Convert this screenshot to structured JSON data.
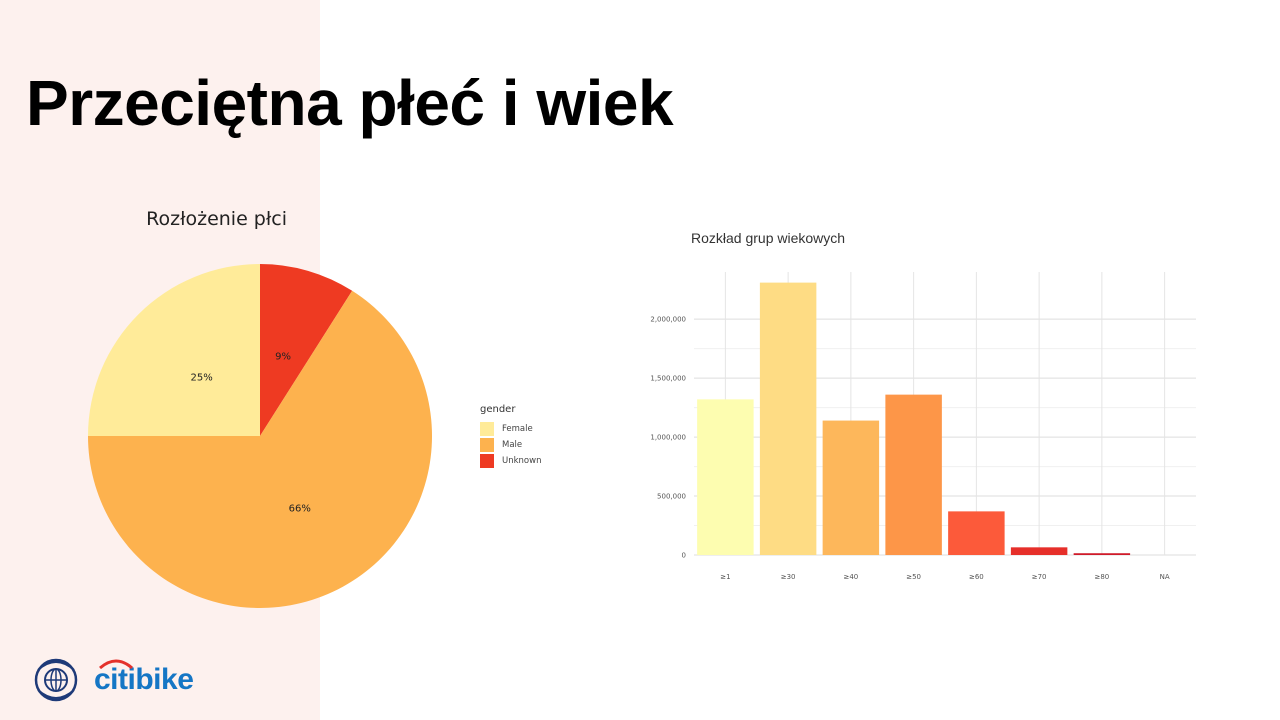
{
  "slide": {
    "title": "Przeciętna płeć i wiek",
    "brand": "citibike"
  },
  "colors": {
    "left_panel": "#fdf1ee",
    "female": "#ffeb99",
    "male": "#fdb24e",
    "unknown": "#ee3a22",
    "brand_blue": "#1576c5",
    "brand_red": "#e4312b"
  },
  "icons": {
    "logo": "globe-seal-icon",
    "brand_arc": "citi-arc-icon"
  },
  "chart_data": [
    {
      "type": "pie",
      "title": "Rozłożenie płci",
      "legend_title": "gender",
      "legend_position": "right",
      "slices": [
        {
          "label": "Female",
          "value": 25,
          "display": "25%",
          "color": "#ffeb99"
        },
        {
          "label": "Male",
          "value": 66,
          "display": "66%",
          "color": "#fdb24e"
        },
        {
          "label": "Unknown",
          "value": 9,
          "display": "9%",
          "color": "#ee3a22"
        }
      ]
    },
    {
      "type": "bar",
      "title": "Rozkład grup wiekowych",
      "categories": [
        "≥1",
        "≥30",
        "≥40",
        "≥50",
        "≥60",
        "≥70",
        "≥80",
        "NA"
      ],
      "values": [
        1320000,
        2310000,
        1140000,
        1360000,
        370000,
        65000,
        15000,
        0
      ],
      "colors": [
        "#fdfdb0",
        "#fedc84",
        "#fdb75b",
        "#fd9648",
        "#fc5a3a",
        "#e62f2a",
        "#cf1b2a",
        "#b10026"
      ],
      "ylim": [
        0,
        2400000
      ],
      "yticks": [
        0,
        500000,
        1000000,
        1500000,
        2000000
      ],
      "ytick_labels": [
        "0",
        "500,000",
        "1,000,000",
        "1,500,000",
        "2,000,000"
      ],
      "grid": true,
      "xlabel": "",
      "ylabel": ""
    }
  ]
}
